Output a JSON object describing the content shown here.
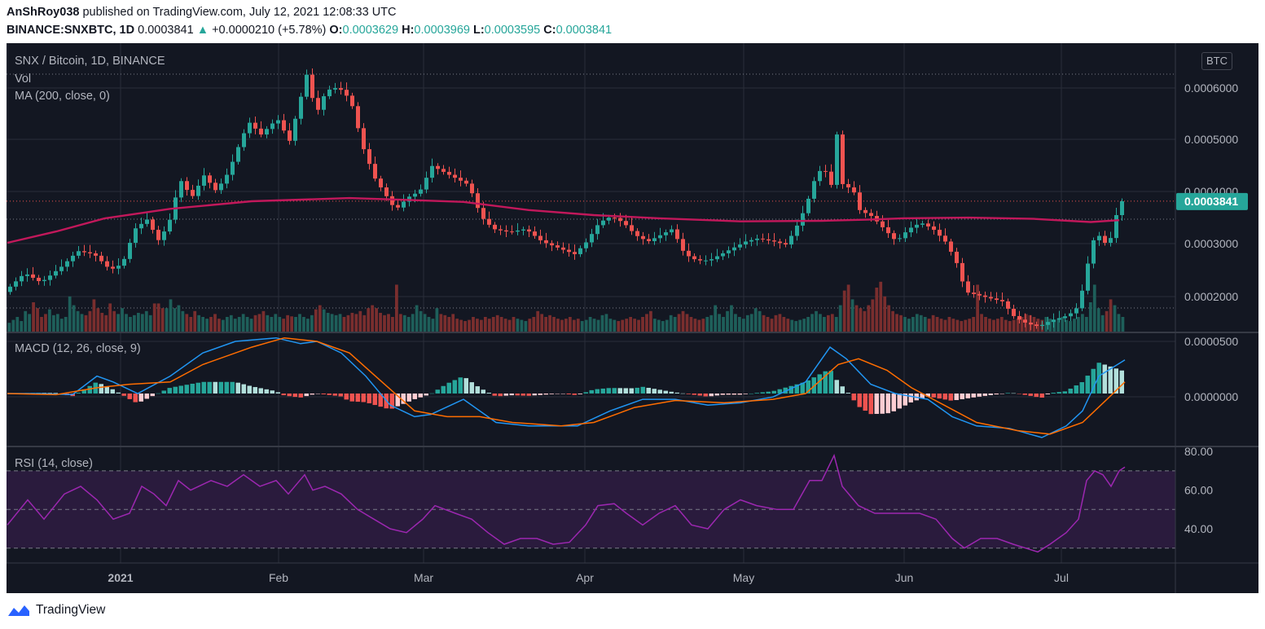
{
  "header": {
    "user": "AnShRoy038",
    "published": " published on TradingView.com, July 12, 2021 12:08:33 UTC",
    "symbol": "BINANCE:SNXBTC, 1D",
    "last": "0.0003841",
    "change": "+0.0000210 (+5.78%)",
    "o_label": "O:",
    "o_value": "0.0003629",
    "h_label": "H:",
    "h_value": "0.0003969",
    "l_label": "L:",
    "l_value": "0.0003595",
    "c_label": "C:",
    "c_value": "0.0003841"
  },
  "chart": {
    "title": "SNX / Bitcoin, 1D, BINANCE",
    "currency_button": "BTC",
    "vol_label": "Vol",
    "ma_label": "MA (200, close, 0)",
    "macd_label": "MACD (12, 26, close, 9)",
    "rsi_label": "RSI (14, close)",
    "price_tag": "0.0003841"
  },
  "footer": {
    "brand": "TradingView"
  },
  "colors": {
    "up": "#26a69a",
    "down": "#ef5350",
    "ma": "#c2185b",
    "macd": "#2196f3",
    "signal": "#ff6d00",
    "rsi": "#9c27b0",
    "rsi_band": "#2a1b3d",
    "bg": "#131722"
  },
  "chart_data": [
    {
      "type": "candlestick",
      "title": "SNX / Bitcoin, 1D, BINANCE",
      "x_ticks": [
        "2021",
        "Feb",
        "Mar",
        "Apr",
        "May",
        "Jun",
        "Jul"
      ],
      "y_ticks": [
        "0.0006000",
        "0.0005000",
        "0.0004000",
        "0.0003000",
        "0.0002000"
      ],
      "ylim": [
        0.000177,
        0.000635
      ],
      "last_price": 0.0003841,
      "ma200_close": [
        [
          0,
          0.000318
        ],
        [
          60,
          0.000336
        ],
        [
          120,
          0.000357
        ],
        [
          200,
          0.000372
        ],
        [
          300,
          0.000384
        ],
        [
          420,
          0.000389
        ],
        [
          470,
          0.000387
        ],
        [
          560,
          0.000383
        ],
        [
          640,
          0.00037
        ],
        [
          720,
          0.000362
        ],
        [
          800,
          0.000357
        ],
        [
          900,
          0.000352
        ],
        [
          1000,
          0.000353
        ],
        [
          1060,
          0.000355
        ],
        [
          1100,
          0.000357
        ],
        [
          1180,
          0.000358
        ],
        [
          1260,
          0.000356
        ],
        [
          1330,
          0.000351
        ],
        [
          1365,
          0.000354
        ]
      ],
      "close_path": [
        [
          0,
          0.00024
        ],
        [
          25,
          0.00027
        ],
        [
          45,
          0.000255
        ],
        [
          70,
          0.00028
        ],
        [
          90,
          0.000305
        ],
        [
          110,
          0.0003
        ],
        [
          130,
          0.000275
        ],
        [
          145,
          0.000285
        ],
        [
          160,
          0.00034
        ],
        [
          175,
          0.000355
        ],
        [
          190,
          0.00032
        ],
        [
          205,
          0.00036
        ],
        [
          215,
          0.00042
        ],
        [
          230,
          0.00039
        ],
        [
          245,
          0.000425
        ],
        [
          260,
          0.0004
        ],
        [
          275,
          0.00043
        ],
        [
          290,
          0.00048
        ],
        [
          300,
          0.00051
        ],
        [
          315,
          0.00049
        ],
        [
          335,
          0.000515
        ],
        [
          350,
          0.00048
        ],
        [
          362,
          0.00054
        ],
        [
          372,
          0.00059
        ],
        [
          382,
          0.00052
        ],
        [
          395,
          0.00056
        ],
        [
          410,
          0.000565
        ],
        [
          425,
          0.000545
        ],
        [
          440,
          0.00047
        ],
        [
          455,
          0.00042
        ],
        [
          470,
          0.00039
        ],
        [
          480,
          0.00037
        ],
        [
          495,
          0.00039
        ],
        [
          510,
          0.0004
        ],
        [
          525,
          0.00044
        ],
        [
          540,
          0.00043
        ],
        [
          555,
          0.00042
        ],
        [
          570,
          0.00041
        ],
        [
          585,
          0.00036
        ],
        [
          600,
          0.00034
        ],
        [
          620,
          0.000335
        ],
        [
          640,
          0.00034
        ],
        [
          660,
          0.00032
        ],
        [
          680,
          0.00031
        ],
        [
          700,
          0.0003
        ],
        [
          715,
          0.00032
        ],
        [
          730,
          0.00035
        ],
        [
          745,
          0.00036
        ],
        [
          760,
          0.00035
        ],
        [
          775,
          0.00033
        ],
        [
          790,
          0.00032
        ],
        [
          805,
          0.00033
        ],
        [
          820,
          0.00034
        ],
        [
          835,
          0.0003
        ],
        [
          850,
          0.00029
        ],
        [
          865,
          0.00029
        ],
        [
          880,
          0.0003
        ],
        [
          895,
          0.00031
        ],
        [
          910,
          0.00032
        ],
        [
          925,
          0.000325
        ],
        [
          945,
          0.00032
        ],
        [
          960,
          0.000315
        ],
        [
          975,
          0.00035
        ],
        [
          985,
          0.00038
        ],
        [
          995,
          0.00042
        ],
        [
          1005,
          0.00044
        ],
        [
          1015,
          0.00041
        ],
        [
          1022,
          0.00049
        ],
        [
          1030,
          0.0004
        ],
        [
          1040,
          0.00041
        ],
        [
          1050,
          0.00037
        ],
        [
          1065,
          0.00036
        ],
        [
          1080,
          0.00034
        ],
        [
          1095,
          0.00032
        ],
        [
          1110,
          0.00034
        ],
        [
          1125,
          0.00035
        ],
        [
          1140,
          0.00034
        ],
        [
          1155,
          0.00032
        ],
        [
          1168,
          0.00029
        ],
        [
          1180,
          0.00024
        ],
        [
          1195,
          0.000235
        ],
        [
          1210,
          0.00023
        ],
        [
          1225,
          0.000225
        ],
        [
          1240,
          0.0002
        ],
        [
          1255,
          0.00019
        ],
        [
          1270,
          0.000185
        ],
        [
          1285,
          0.000195
        ],
        [
          1300,
          0.0002
        ],
        [
          1315,
          0.00021
        ],
        [
          1325,
          0.00025
        ],
        [
          1335,
          0.00032
        ],
        [
          1345,
          0.00033
        ],
        [
          1355,
          0.00031
        ],
        [
          1365,
          0.000362
        ],
        [
          1372,
          0.000384
        ]
      ]
    },
    {
      "type": "bar",
      "title": "Vol",
      "note": "relative daily volume, 0-1 scale",
      "values": [
        0.15,
        0.2,
        0.25,
        0.18,
        0.35,
        0.3,
        0.5,
        0.4,
        0.25,
        0.3,
        0.38,
        0.28,
        0.3,
        0.22,
        0.25,
        0.6,
        0.45,
        0.35,
        0.3,
        0.28,
        0.35,
        0.55,
        0.4,
        0.32,
        0.28,
        0.48,
        0.35,
        0.3,
        0.4,
        0.3,
        0.25,
        0.28,
        0.32,
        0.3,
        0.35,
        0.28,
        0.48,
        0.48,
        0.4,
        0.4,
        0.55,
        0.4,
        0.45,
        0.35,
        0.3,
        0.25,
        0.35,
        0.28,
        0.25,
        0.22,
        0.25,
        0.3,
        0.22,
        0.2,
        0.25,
        0.28,
        0.22,
        0.25,
        0.3,
        0.25,
        0.22,
        0.28,
        0.3,
        0.35,
        0.28,
        0.25,
        0.3,
        0.25,
        0.22,
        0.28,
        0.26,
        0.25,
        0.3,
        0.25,
        0.22,
        0.28,
        0.38,
        0.45,
        0.38,
        0.32,
        0.3,
        0.28,
        0.3,
        0.25,
        0.28,
        0.32,
        0.3,
        0.35,
        0.28,
        0.4,
        0.45,
        0.4,
        0.32,
        0.28,
        0.3,
        0.25,
        0.8,
        0.3,
        0.28,
        0.25,
        0.3,
        0.45,
        0.35,
        0.3,
        0.25,
        0.22,
        0.4,
        0.3,
        0.28,
        0.25,
        0.3,
        0.22,
        0.2,
        0.18,
        0.2,
        0.25,
        0.22,
        0.2,
        0.25,
        0.22,
        0.25,
        0.28,
        0.25,
        0.22,
        0.2,
        0.25,
        0.22,
        0.2,
        0.18,
        0.22,
        0.25,
        0.35,
        0.3,
        0.25,
        0.28,
        0.25,
        0.22,
        0.2,
        0.22,
        0.25,
        0.2,
        0.22,
        0.18,
        0.2,
        0.25,
        0.22,
        0.2,
        0.28,
        0.3,
        0.22,
        0.2,
        0.18,
        0.2,
        0.22,
        0.25,
        0.22,
        0.2,
        0.25,
        0.3,
        0.35,
        0.22,
        0.2,
        0.18,
        0.2,
        0.28,
        0.25,
        0.3,
        0.35,
        0.3,
        0.25,
        0.22,
        0.2,
        0.22,
        0.25,
        0.28,
        0.45,
        0.3,
        0.25,
        0.35,
        0.45,
        0.3,
        0.25,
        0.22,
        0.28,
        0.3,
        0.4,
        0.35,
        0.28,
        0.25,
        0.22,
        0.28,
        0.3,
        0.25,
        0.22,
        0.2,
        0.18,
        0.2,
        0.22,
        0.25,
        0.3,
        0.35,
        0.3,
        0.25,
        0.28,
        0.3,
        0.25,
        0.45,
        0.7,
        0.8,
        0.55,
        0.45,
        0.4,
        0.35,
        0.45,
        0.55,
        0.75,
        0.85,
        0.6,
        0.45,
        0.35,
        0.3,
        0.28,
        0.25,
        0.22,
        0.25,
        0.3,
        0.28,
        0.25,
        0.22,
        0.28,
        0.25,
        0.22,
        0.2,
        0.25,
        0.22,
        0.2,
        0.18,
        0.2,
        0.22,
        0.25,
        0.8,
        0.3,
        0.25,
        0.22,
        0.2,
        0.22,
        0.25,
        0.2,
        0.18,
        0.2,
        0.22,
        0.25,
        0.3,
        0.28,
        0.25,
        0.22,
        0.2,
        0.25,
        0.22,
        0.2,
        0.22,
        0.25,
        0.2,
        0.18,
        0.22,
        0.25,
        0.3,
        0.25,
        0.5,
        0.8,
        0.4,
        0.28,
        0.35,
        0.55,
        0.45,
        0.3,
        0.25
      ]
    },
    {
      "type": "line",
      "title": "MACD (12, 26, close, 9)",
      "y_ticks": [
        "0.0000500",
        "0.0000000"
      ],
      "ylim": [
        -4.5e-05,
        5.2e-05
      ],
      "macd": [
        [
          0,
          0.0
        ],
        [
          40,
          0.0
        ],
        [
          80,
          -1e-06
        ],
        [
          110,
          1.5e-05
        ],
        [
          130,
          1e-05
        ],
        [
          160,
          0.0
        ],
        [
          200,
          1.5e-05
        ],
        [
          240,
          3.5e-05
        ],
        [
          280,
          4.5e-05
        ],
        [
          330,
          4.8e-05
        ],
        [
          360,
          4.3e-05
        ],
        [
          380,
          4.5e-05
        ],
        [
          410,
          3.5e-05
        ],
        [
          440,
          1.5e-05
        ],
        [
          470,
          -1e-05
        ],
        [
          500,
          -2e-05
        ],
        [
          520,
          -1.8e-05
        ],
        [
          560,
          -5e-06
        ],
        [
          600,
          -2.5e-05
        ],
        [
          640,
          -2.8e-05
        ],
        [
          700,
          -2.8e-05
        ],
        [
          740,
          -1.5e-05
        ],
        [
          780,
          -5e-06
        ],
        [
          820,
          -5e-06
        ],
        [
          860,
          -1e-05
        ],
        [
          900,
          -8e-06
        ],
        [
          940,
          -3e-06
        ],
        [
          980,
          1e-05
        ],
        [
          1010,
          4e-05
        ],
        [
          1030,
          3e-05
        ],
        [
          1060,
          8e-06
        ],
        [
          1090,
          0.0
        ],
        [
          1130,
          -5e-06
        ],
        [
          1160,
          -2e-05
        ],
        [
          1190,
          -2.8e-05
        ],
        [
          1230,
          -3e-05
        ],
        [
          1270,
          -3.8e-05
        ],
        [
          1300,
          -2.8e-05
        ],
        [
          1320,
          -1.5e-05
        ],
        [
          1340,
          1.5e-05
        ],
        [
          1372,
          2.9e-05
        ]
      ],
      "signal": [
        [
          0,
          0.0
        ],
        [
          60,
          -1e-06
        ],
        [
          110,
          5e-06
        ],
        [
          150,
          8e-06
        ],
        [
          200,
          1e-05
        ],
        [
          240,
          2.5e-05
        ],
        [
          300,
          4e-05
        ],
        [
          340,
          4.8e-05
        ],
        [
          380,
          4.5e-05
        ],
        [
          420,
          3.5e-05
        ],
        [
          460,
          1e-05
        ],
        [
          500,
          -1.5e-05
        ],
        [
          540,
          -2e-05
        ],
        [
          580,
          -2e-05
        ],
        [
          620,
          -2.5e-05
        ],
        [
          680,
          -2.8e-05
        ],
        [
          720,
          -2.5e-05
        ],
        [
          770,
          -1.2e-05
        ],
        [
          820,
          -6e-06
        ],
        [
          880,
          -8e-06
        ],
        [
          940,
          -5e-06
        ],
        [
          980,
          0.0
        ],
        [
          1020,
          2.5e-05
        ],
        [
          1045,
          3e-05
        ],
        [
          1080,
          2e-05
        ],
        [
          1110,
          5e-06
        ],
        [
          1150,
          -1e-05
        ],
        [
          1190,
          -2.5e-05
        ],
        [
          1240,
          -3.2e-05
        ],
        [
          1280,
          -3.5e-05
        ],
        [
          1320,
          -2.5e-05
        ],
        [
          1350,
          -5e-06
        ],
        [
          1372,
          1e-05
        ]
      ]
    },
    {
      "type": "line",
      "title": "RSI (14, close)",
      "y_ticks": [
        "80.00",
        "60.00",
        "40.00"
      ],
      "ylim": [
        22.7,
        82.2
      ],
      "bands": [
        70,
        50,
        30
      ],
      "values": [
        [
          0,
          42
        ],
        [
          25,
          55
        ],
        [
          45,
          45
        ],
        [
          70,
          58
        ],
        [
          90,
          62
        ],
        [
          110,
          55
        ],
        [
          130,
          45
        ],
        [
          150,
          48
        ],
        [
          165,
          62
        ],
        [
          180,
          58
        ],
        [
          195,
          52
        ],
        [
          210,
          65
        ],
        [
          225,
          60
        ],
        [
          250,
          65
        ],
        [
          270,
          62
        ],
        [
          290,
          68
        ],
        [
          310,
          62
        ],
        [
          330,
          65
        ],
        [
          345,
          58
        ],
        [
          365,
          68
        ],
        [
          375,
          60
        ],
        [
          390,
          62
        ],
        [
          410,
          58
        ],
        [
          430,
          50
        ],
        [
          450,
          45
        ],
        [
          470,
          40
        ],
        [
          490,
          38
        ],
        [
          510,
          45
        ],
        [
          525,
          52
        ],
        [
          550,
          48
        ],
        [
          570,
          45
        ],
        [
          590,
          38
        ],
        [
          610,
          32
        ],
        [
          630,
          35
        ],
        [
          650,
          35
        ],
        [
          670,
          32
        ],
        [
          690,
          33
        ],
        [
          710,
          42
        ],
        [
          725,
          52
        ],
        [
          745,
          53
        ],
        [
          760,
          48
        ],
        [
          780,
          42
        ],
        [
          800,
          48
        ],
        [
          820,
          52
        ],
        [
          840,
          42
        ],
        [
          860,
          40
        ],
        [
          880,
          50
        ],
        [
          900,
          55
        ],
        [
          920,
          52
        ],
        [
          945,
          50
        ],
        [
          965,
          50
        ],
        [
          985,
          65
        ],
        [
          1000,
          65
        ],
        [
          1015,
          78
        ],
        [
          1025,
          62
        ],
        [
          1045,
          52
        ],
        [
          1065,
          48
        ],
        [
          1085,
          48
        ],
        [
          1100,
          48
        ],
        [
          1120,
          48
        ],
        [
          1140,
          45
        ],
        [
          1160,
          35
        ],
        [
          1175,
          30
        ],
        [
          1195,
          35
        ],
        [
          1215,
          35
        ],
        [
          1235,
          32
        ],
        [
          1250,
          30
        ],
        [
          1265,
          28
        ],
        [
          1280,
          32
        ],
        [
          1300,
          38
        ],
        [
          1315,
          45
        ],
        [
          1325,
          65
        ],
        [
          1335,
          70
        ],
        [
          1345,
          68
        ],
        [
          1355,
          62
        ],
        [
          1365,
          70
        ],
        [
          1372,
          72
        ]
      ]
    }
  ]
}
